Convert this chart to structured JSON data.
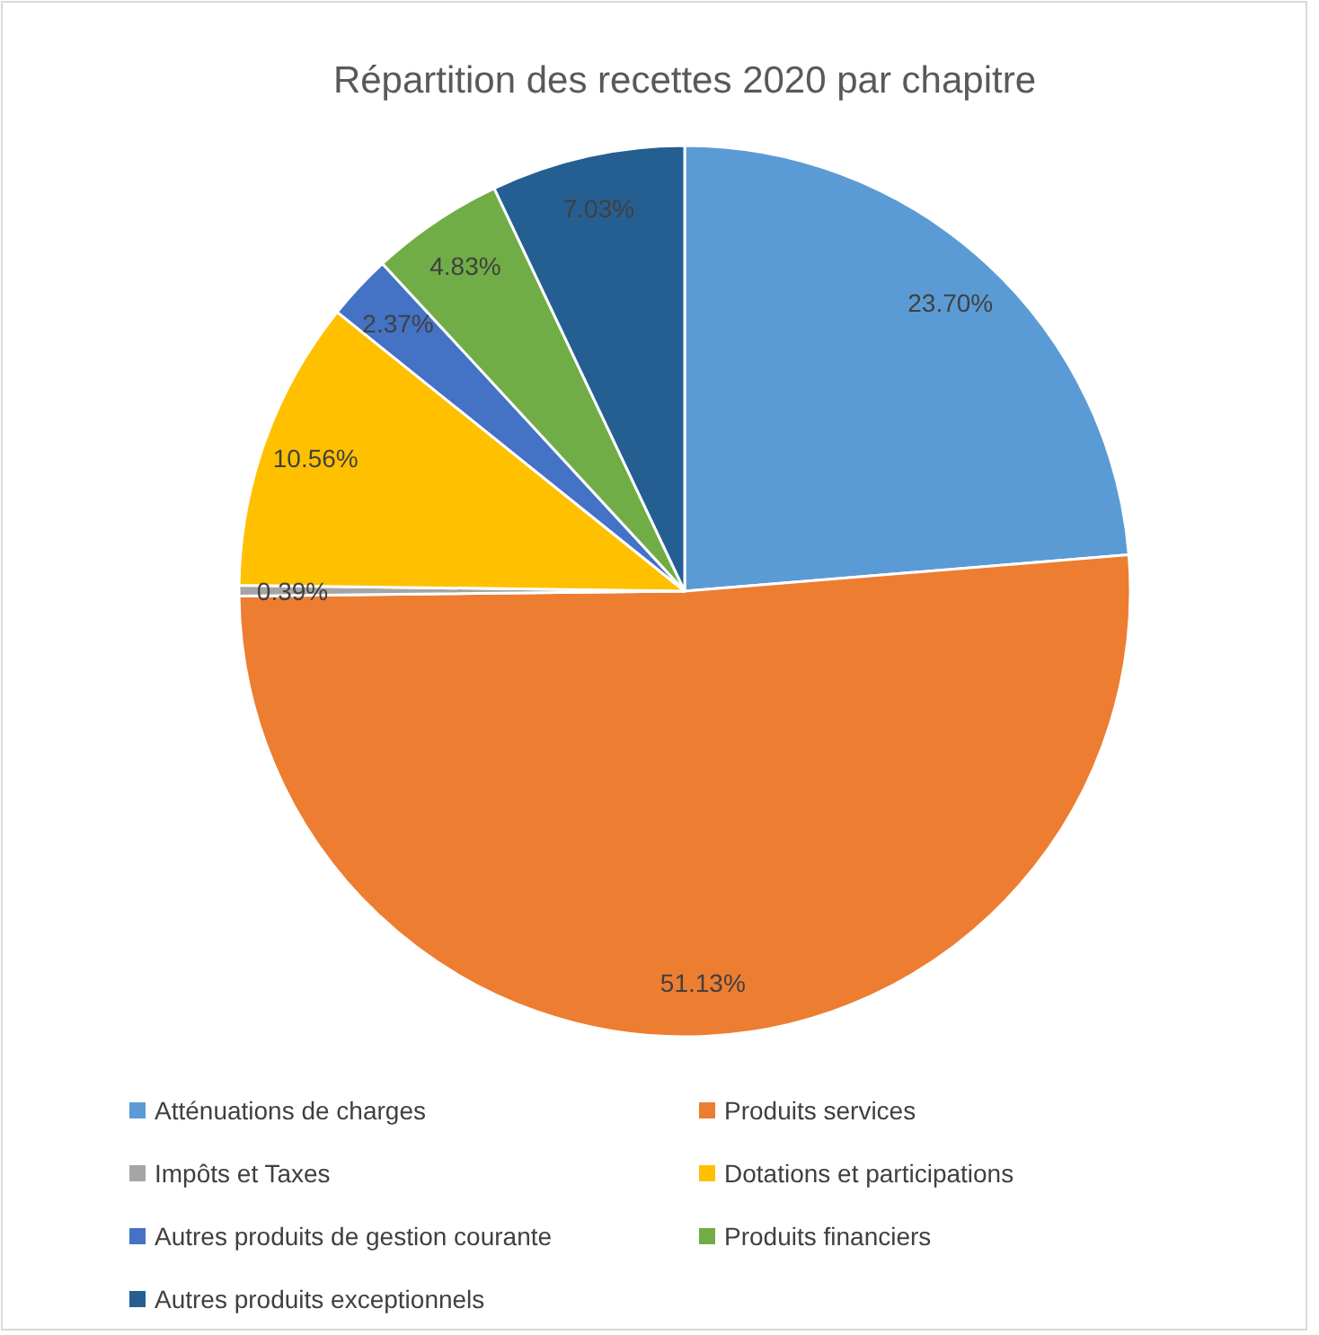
{
  "chart_data": {
    "type": "pie",
    "title": "Répartition des recettes 2020 par chapitre",
    "categories": [
      "Atténuations de charges",
      "Produits services",
      "Impôts et Taxes",
      "Dotations et participations",
      "Autres produits de gestion courante",
      "Produits financiers",
      "Autres produits exceptionnels"
    ],
    "values": [
      23.7,
      51.13,
      0.39,
      10.56,
      2.37,
      4.83,
      7.03
    ],
    "colors": [
      "#5b9bd5",
      "#ed7d31",
      "#a5a5a5",
      "#ffc000",
      "#4472c4",
      "#70ad47",
      "#255e91"
    ],
    "value_labels": [
      "23.70%",
      "51.13%",
      "0.39%",
      "10.56%",
      "2.37%",
      "4.83%",
      "7.03%"
    ],
    "legend": "bottom"
  }
}
